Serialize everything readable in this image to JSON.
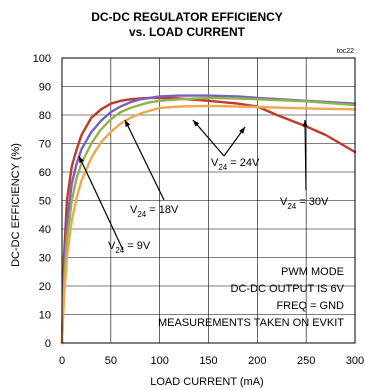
{
  "chart_data": {
    "type": "line",
    "title": [
      "DC-DC REGULATOR EFFICIENCY",
      "vs. LOAD CURRENT"
    ],
    "figure_tag": "toc22",
    "xlabel": "LOAD CURRENT (mA)",
    "ylabel": "DC-DC EFFICIENCY (%)",
    "xlim": [
      0,
      300
    ],
    "ylim": [
      0,
      100
    ],
    "xticks": [
      "0",
      "50",
      "100",
      "150",
      "200",
      "250",
      "300"
    ],
    "yticks": [
      "0",
      "10",
      "20",
      "30",
      "40",
      "50",
      "60",
      "70",
      "80",
      "90",
      "100"
    ],
    "grid": true,
    "series": [
      {
        "name": "V24 = 9V",
        "color": "#c0392b",
        "x": [
          0,
          2,
          5,
          10,
          15,
          20,
          30,
          40,
          50,
          60,
          70,
          80,
          90,
          100,
          120,
          150,
          180,
          200,
          220,
          250,
          270,
          300
        ],
        "y": [
          0,
          30,
          50,
          62,
          68,
          73,
          79,
          82,
          84,
          85,
          85.5,
          85.8,
          86,
          86,
          85.8,
          85,
          84,
          83,
          80,
          76,
          73,
          67
        ]
      },
      {
        "name": "V24 = 18V",
        "color": "#7a5fc0",
        "x": [
          0,
          2,
          5,
          10,
          15,
          20,
          30,
          40,
          50,
          60,
          70,
          80,
          90,
          100,
          120,
          150,
          180,
          200,
          250,
          300
        ],
        "y": [
          0,
          24,
          42,
          56,
          63,
          68,
          74,
          78,
          81,
          83,
          84.5,
          85.5,
          86,
          86.5,
          86.8,
          86.8,
          86.5,
          86,
          85,
          84
        ]
      },
      {
        "name": "V24 = 24V",
        "color": "#8fb548",
        "x": [
          0,
          2,
          5,
          10,
          15,
          20,
          30,
          40,
          50,
          60,
          70,
          80,
          90,
          100,
          120,
          150,
          180,
          200,
          250,
          300
        ],
        "y": [
          0,
          20,
          36,
          50,
          58,
          63,
          70,
          75,
          78.5,
          81,
          82.5,
          83.5,
          84.5,
          85,
          85.5,
          86,
          85.8,
          85.5,
          84.8,
          83.5
        ]
      },
      {
        "name": "V24 = 30V",
        "color": "#f2a650",
        "x": [
          0,
          2,
          5,
          10,
          15,
          20,
          30,
          40,
          50,
          60,
          70,
          80,
          90,
          100,
          120,
          150,
          180,
          200,
          250,
          300
        ],
        "y": [
          0,
          16,
          30,
          43,
          51,
          57,
          65,
          70.5,
          74,
          77,
          79,
          80.5,
          81.5,
          82.5,
          83,
          83.2,
          83,
          82.8,
          82.3,
          82
        ]
      }
    ],
    "labels": [
      {
        "id": "label-9v",
        "pre": "V",
        "sub": "24",
        "post": " = 9V"
      },
      {
        "id": "label-18v",
        "pre": "V",
        "sub": "24",
        "post": " = 18V"
      },
      {
        "id": "label-24v",
        "pre": "V",
        "sub": "24",
        "post": " = 24V"
      },
      {
        "id": "label-30v",
        "pre": "V",
        "sub": "24",
        "post": " = 30V"
      }
    ],
    "notes": [
      "PWM MODE",
      "DC-DC  OUTPUT IS 6V",
      "FREQ  = GND",
      "MEASUREMENTS TAKEN ON EVKIT"
    ]
  }
}
